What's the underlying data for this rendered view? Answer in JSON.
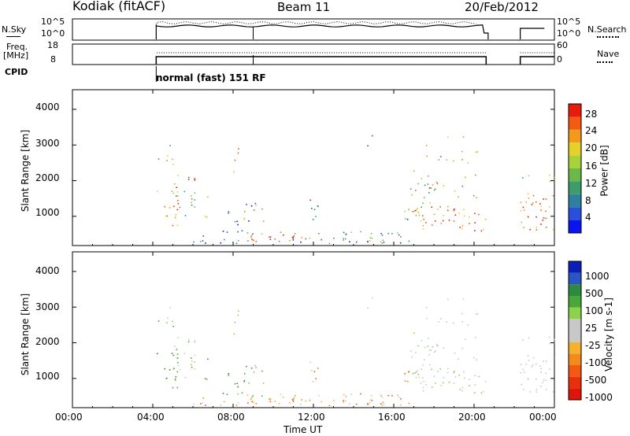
{
  "header": {
    "station": "Kodiak (fitACF)",
    "beam": "Beam 11",
    "date": "20/Feb/2012"
  },
  "nsky_panel": {
    "left_label": "N.Sky",
    "left_ticks": [
      "10^5",
      "10^0"
    ],
    "right_ticks": [
      "10^5",
      "10^0"
    ],
    "right_label": "N.Search"
  },
  "freq_panel": {
    "left_label_1": "Freq.",
    "left_label_2": "[MHz]",
    "left_ticks": [
      "18",
      "8"
    ],
    "right_ticks": [
      "60",
      "0"
    ],
    "right_label": "Nave"
  },
  "cpid": {
    "label": "CPID",
    "mode": "normal (fast) 151 RF"
  },
  "chart_data": [
    {
      "type": "heatmap",
      "ylabel": "Slant Range [km]",
      "yticks": [
        "1000",
        "2000",
        "3000",
        "4000"
      ],
      "ylim": [
        180,
        4550
      ],
      "colorbar": {
        "label": "Power [dB]",
        "ticks": [
          "4",
          "8",
          "12",
          "16",
          "20",
          "24",
          "28"
        ],
        "range": [
          0,
          30
        ],
        "colors": [
          "#0a14f0",
          "#2a4fd8",
          "#2f7f9f",
          "#3e9c6a",
          "#6cb84a",
          "#a7d23a",
          "#e6d02b",
          "#f29a1c",
          "#f25b12",
          "#e81c0c"
        ]
      },
      "xlim": [
        0,
        24
      ]
    },
    {
      "type": "heatmap",
      "ylabel": "Slant Range [km]",
      "yticks": [
        "1000",
        "2000",
        "3000",
        "4000"
      ],
      "ylim": [
        180,
        4550
      ],
      "colorbar": {
        "label": "Velocity [m s-1]",
        "ticks": [
          "1000",
          "500",
          "100",
          "25",
          "-25",
          "-100",
          "-500",
          "-1000"
        ],
        "colors": [
          "#0b1fb8",
          "#2c55c4",
          "#2e8a3e",
          "#4aa83a",
          "#8cd24a",
          "#c8c8c8",
          "#c8c8c8",
          "#f4b230",
          "#f28a1c",
          "#f25a12",
          "#e8300c",
          "#e0140a"
        ]
      },
      "xlim": [
        0,
        24
      ]
    }
  ],
  "xaxis": {
    "label": "Time UT",
    "ticks": [
      "00:00",
      "04:00",
      "08:00",
      "12:00",
      "16:00",
      "20:00",
      "00:00"
    ],
    "values": [
      0,
      4,
      8,
      12,
      16,
      20,
      24
    ]
  }
}
